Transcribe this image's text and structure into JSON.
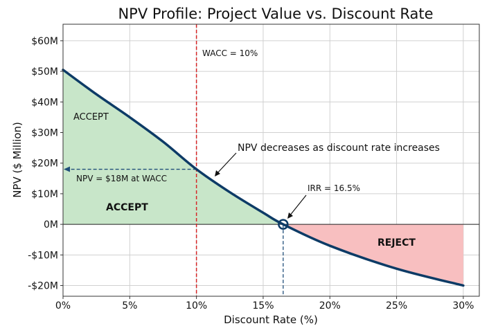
{
  "chart_data": {
    "type": "line",
    "title": "NPV Profile: Project Value vs. Discount Rate",
    "xlabel": "Discount Rate (%)",
    "ylabel": "NPV ($ Million)",
    "xlim": [
      0,
      31.2
    ],
    "ylim": [
      -23.5,
      65.4
    ],
    "grid": true,
    "x_ticks": [
      0,
      5,
      10,
      15,
      20,
      25,
      30
    ],
    "x_tick_labels": [
      "0%",
      "5%",
      "10%",
      "15%",
      "20%",
      "25%",
      "30%"
    ],
    "y_ticks": [
      -20,
      -10,
      0,
      10,
      20,
      30,
      40,
      50,
      60
    ],
    "y_tick_labels": [
      "-$20M",
      "-$10M",
      "0M",
      "$10M",
      "$20M",
      "$30M",
      "$40M",
      "$50M",
      "$60M"
    ],
    "series": [
      {
        "x": [
          0,
          2.5,
          5,
          7.5,
          10,
          12.5,
          15,
          16.5,
          20,
          25,
          30
        ],
        "y": [
          50.5,
          42.5,
          35,
          27,
          18,
          10.5,
          3.8,
          0,
          -7,
          -14.5,
          -20
        ],
        "color": "#0d3b66"
      }
    ],
    "wacc": 10,
    "irr": 16.5,
    "npv_at_wacc": 18,
    "colors": {
      "accept_fill": "#c8e6c9",
      "reject_fill": "#f8bfc0",
      "wacc_line": "#d62728",
      "curve": "#0d3b66"
    },
    "annotations": {
      "wacc": "WACC = 10%",
      "accept_upper": "ACCEPT",
      "accept_lower": "ACCEPT",
      "npv_wacc": "NPV = $18M at WACC",
      "trend": "NPV decreases as discount rate increases",
      "irr": "IRR = 16.5%",
      "reject": "REJECT"
    }
  }
}
